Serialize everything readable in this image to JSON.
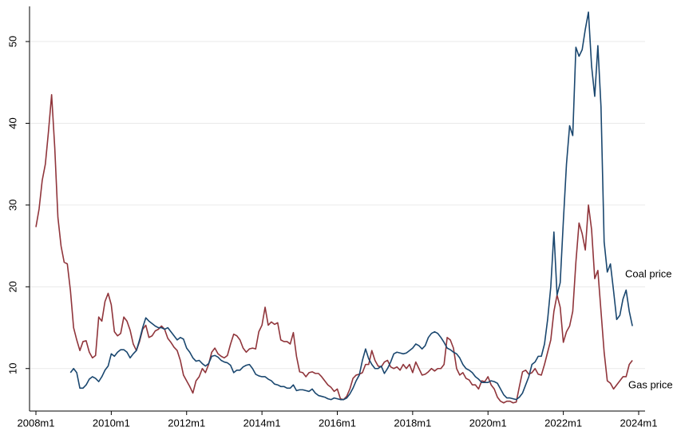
{
  "chart_data": {
    "type": "line",
    "x": [
      "2008m1",
      "2008m2",
      "2008m3",
      "2008m4",
      "2008m5",
      "2008m6",
      "2008m7",
      "2008m8",
      "2008m9",
      "2008m10",
      "2008m11",
      "2008m12",
      "2009m1",
      "2009m2",
      "2009m3",
      "2009m4",
      "2009m5",
      "2009m6",
      "2009m7",
      "2009m8",
      "2009m9",
      "2009m10",
      "2009m11",
      "2009m12",
      "2010m1",
      "2010m2",
      "2010m3",
      "2010m4",
      "2010m5",
      "2010m6",
      "2010m7",
      "2010m8",
      "2010m9",
      "2010m10",
      "2010m11",
      "2010m12",
      "2011m1",
      "2011m2",
      "2011m3",
      "2011m4",
      "2011m5",
      "2011m6",
      "2011m7",
      "2011m8",
      "2011m9",
      "2011m10",
      "2011m11",
      "2011m12",
      "2012m1",
      "2012m2",
      "2012m3",
      "2012m4",
      "2012m5",
      "2012m6",
      "2012m7",
      "2012m8",
      "2012m9",
      "2012m10",
      "2012m11",
      "2012m12",
      "2013m1",
      "2013m2",
      "2013m3",
      "2013m4",
      "2013m5",
      "2013m6",
      "2013m7",
      "2013m8",
      "2013m9",
      "2013m10",
      "2013m11",
      "2013m12",
      "2014m1",
      "2014m2",
      "2014m3",
      "2014m4",
      "2014m5",
      "2014m6",
      "2014m7",
      "2014m8",
      "2014m9",
      "2014m10",
      "2014m11",
      "2014m12",
      "2015m1",
      "2015m2",
      "2015m3",
      "2015m4",
      "2015m5",
      "2015m6",
      "2015m7",
      "2015m8",
      "2015m9",
      "2015m10",
      "2015m11",
      "2015m12",
      "2016m1",
      "2016m2",
      "2016m3",
      "2016m4",
      "2016m5",
      "2016m6",
      "2016m7",
      "2016m8",
      "2016m9",
      "2016m10",
      "2016m11",
      "2016m12",
      "2017m1",
      "2017m2",
      "2017m3",
      "2017m4",
      "2017m5",
      "2017m6",
      "2017m7",
      "2017m8",
      "2017m9",
      "2017m10",
      "2017m11",
      "2017m12",
      "2018m1",
      "2018m2",
      "2018m3",
      "2018m4",
      "2018m5",
      "2018m6",
      "2018m7",
      "2018m8",
      "2018m9",
      "2018m10",
      "2018m11",
      "2018m12",
      "2019m1",
      "2019m2",
      "2019m3",
      "2019m4",
      "2019m5",
      "2019m6",
      "2019m7",
      "2019m8",
      "2019m9",
      "2019m10",
      "2019m11",
      "2019m12",
      "2020m1",
      "2020m2",
      "2020m3",
      "2020m4",
      "2020m5",
      "2020m6",
      "2020m7",
      "2020m8",
      "2020m9",
      "2020m10",
      "2020m11",
      "2020m12",
      "2021m1",
      "2021m2",
      "2021m3",
      "2021m4",
      "2021m5",
      "2021m6",
      "2021m7",
      "2021m8",
      "2021m9",
      "2021m10",
      "2021m11",
      "2021m12",
      "2022m1",
      "2022m2",
      "2022m3",
      "2022m4",
      "2022m5",
      "2022m6",
      "2022m7",
      "2022m8",
      "2022m9",
      "2022m10",
      "2022m11",
      "2022m12",
      "2023m1",
      "2023m2",
      "2023m3",
      "2023m4",
      "2023m5",
      "2023m6",
      "2023m7",
      "2023m8",
      "2023m9",
      "2023m10",
      "2023m11"
    ],
    "series": [
      {
        "name": "Coal price",
        "color": "#1a476f",
        "values": [
          null,
          null,
          null,
          null,
          null,
          null,
          null,
          null,
          null,
          null,
          null,
          9.5,
          10,
          9.5,
          7.6,
          7.6,
          8,
          8.7,
          9,
          8.8,
          8.4,
          9,
          9.8,
          10.3,
          11.8,
          11.5,
          12,
          12.3,
          12.3,
          12,
          11.3,
          11.8,
          12.2,
          13.5,
          15,
          16.2,
          15.8,
          15.5,
          15.2,
          15,
          15,
          14.8,
          15,
          14.5,
          14,
          13.5,
          13.8,
          13.6,
          12.5,
          12,
          11.3,
          10.9,
          11,
          10.6,
          10.3,
          10.6,
          11.5,
          11.6,
          11.4,
          11,
          10.8,
          10.7,
          10.4,
          9.5,
          9.8,
          9.8,
          10.2,
          10.4,
          10.5,
          10,
          9.3,
          9.1,
          9,
          9,
          8.7,
          8.5,
          8.1,
          8,
          7.8,
          7.8,
          7.6,
          7.6,
          8,
          7.3,
          7.4,
          7.4,
          7.3,
          7.2,
          7.5,
          7,
          6.7,
          6.6,
          6.5,
          6.3,
          6.2,
          6.4,
          6.3,
          6.2,
          6.2,
          6.4,
          6.9,
          7.6,
          8.5,
          9.2,
          11,
          12.4,
          11.2,
          10.5,
          10,
          10,
          10.3,
          9.4,
          10,
          10.8,
          11.8,
          12,
          11.9,
          11.8,
          11.9,
          12.2,
          12.5,
          13,
          12.8,
          12.4,
          12.8,
          13.8,
          14.3,
          14.5,
          14.3,
          13.8,
          13.2,
          12.5,
          12.3,
          12,
          11.8,
          11.3,
          10.5,
          10,
          9.8,
          9.5,
          9,
          8.7,
          8.3,
          8.3,
          8.3,
          8.5,
          8.4,
          8.2,
          7.5,
          6.8,
          6.4,
          6.4,
          6.3,
          6.2,
          6.5,
          7,
          8,
          9,
          10.5,
          10.8,
          11.5,
          11.5,
          13,
          16,
          20,
          26.7,
          19,
          20.5,
          28,
          35,
          39.7,
          38.5,
          49.3,
          48.2,
          49,
          51.5,
          53.6,
          47,
          43.3,
          49.5,
          42,
          25.5,
          21.8,
          22.8,
          19.5,
          16,
          16.5,
          18.5,
          19.6,
          17,
          15.2
        ]
      },
      {
        "name": "Gas price",
        "color": "#90353b",
        "values": [
          27.3,
          29.5,
          33,
          35,
          39,
          43.5,
          37,
          28.5,
          25,
          23,
          22.8,
          19.5,
          15,
          13.5,
          12.2,
          13.3,
          13.4,
          12,
          11.3,
          11.6,
          16.3,
          15.8,
          18.2,
          19.2,
          17.8,
          14.5,
          14,
          14.3,
          16.3,
          15.8,
          14.7,
          13,
          12.2,
          13.3,
          14.8,
          15.3,
          13.8,
          14,
          14.6,
          14.8,
          15.2,
          14.8,
          13.7,
          13.2,
          12.6,
          12.2,
          11,
          9.2,
          8.5,
          7.8,
          7,
          8.5,
          9,
          10,
          9.5,
          10.5,
          12,
          12.5,
          11.8,
          11.5,
          11.3,
          11.6,
          13,
          14.2,
          14,
          13.5,
          12.5,
          12,
          12.4,
          12.5,
          12.4,
          14.5,
          15.3,
          17.5,
          15.3,
          15.7,
          15.4,
          15.6,
          13.5,
          13.3,
          13.3,
          13,
          14.4,
          11.5,
          9.6,
          9.5,
          9,
          9.5,
          9.6,
          9.4,
          9.4,
          9,
          8.5,
          8,
          7.7,
          7.2,
          7.5,
          6.3,
          6.2,
          6.6,
          7.5,
          8.8,
          9.2,
          9.3,
          9.5,
          10.5,
          10.5,
          12.2,
          11,
          10.3,
          10.2,
          10.8,
          11,
          10.2,
          10,
          10.2,
          9.8,
          10.5,
          10,
          10.5,
          9.5,
          10.8,
          10,
          9.2,
          9.3,
          9.6,
          10,
          9.7,
          10,
          10,
          10.5,
          13.8,
          13.5,
          12.5,
          10,
          9.2,
          9.5,
          8.8,
          8.6,
          8,
          8,
          7.5,
          8.5,
          8.4,
          9,
          8,
          7.5,
          6.5,
          6,
          5.8,
          6,
          6,
          5.8,
          5.9,
          7.8,
          9.6,
          9.8,
          9.3,
          9.5,
          10,
          9.3,
          9.2,
          10.5,
          12,
          13.5,
          17,
          19,
          17.5,
          13.2,
          14.5,
          15.2,
          17,
          23,
          27.8,
          26.5,
          24.5,
          30,
          27,
          21,
          22,
          17,
          12,
          8.5,
          8.2,
          7.5,
          8,
          8.5,
          9,
          9,
          10.5,
          11
        ]
      }
    ],
    "xticks": [
      "2008m1",
      "2010m1",
      "2012m1",
      "2014m1",
      "2016m1",
      "2018m1",
      "2020m1",
      "2022m1",
      "2024m1"
    ],
    "ylim": [
      4.8,
      54.3
    ],
    "yticks": [
      10,
      20,
      30,
      40,
      50
    ],
    "grid": true
  }
}
